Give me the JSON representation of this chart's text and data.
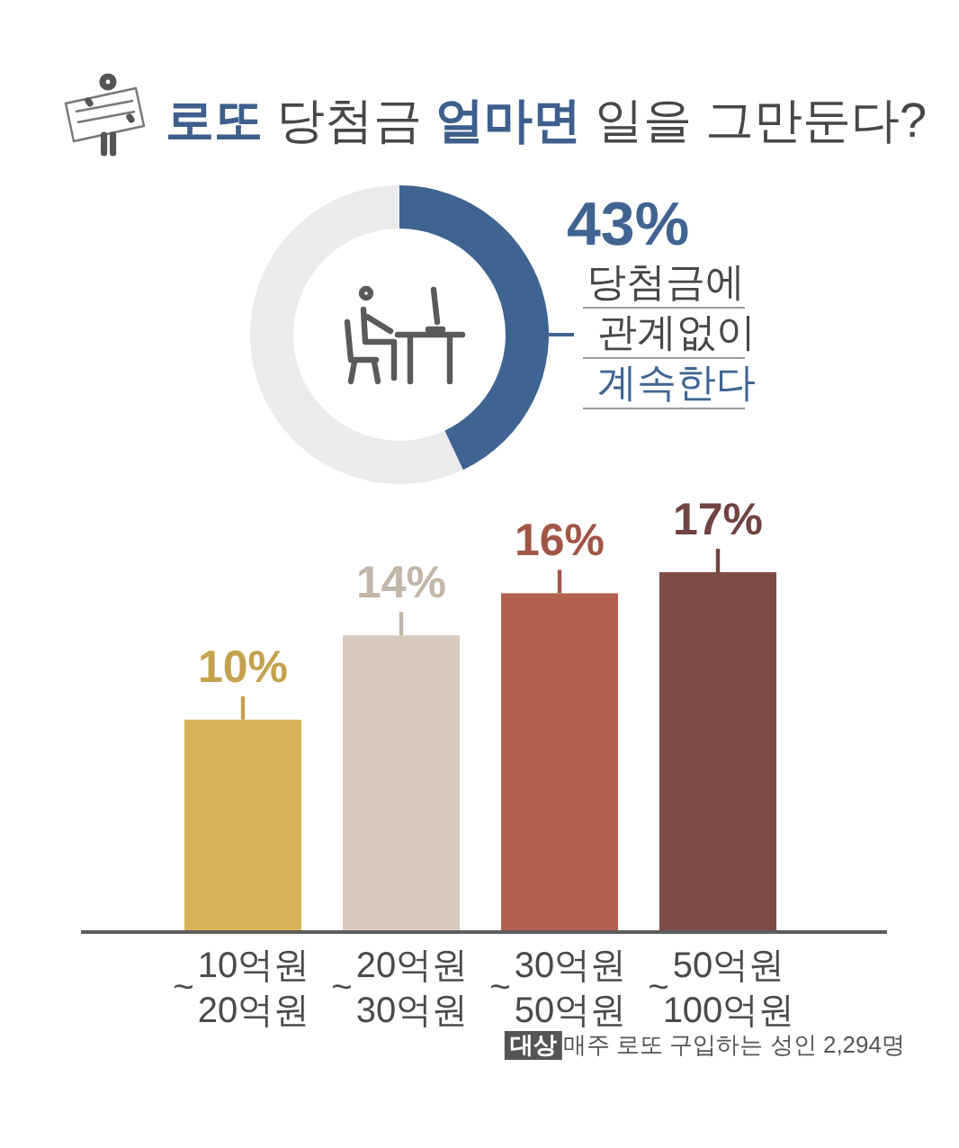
{
  "chart_data": [
    {
      "type": "donut",
      "title": "**로또** 당첨금 **얼마면** 일을 그만둔다?",
      "categories": [
        "당첨금에 관계없이 **계속한다**",
        null
      ],
      "values": [
        43,
        57
      ],
      "colors": [
        "#3f6491",
        "#ebebeb"
      ],
      "value_labels": [
        "43%",
        null
      ]
    },
    {
      "type": "bar",
      "categories": [
        "10억원~20억원",
        "20억원~30억원",
        "30억원~50억원",
        "50억원~100억원"
      ],
      "values": [
        10,
        14,
        16,
        17
      ],
      "colors": [
        "#dab356",
        "#d8cabc",
        "#b3604f",
        "#7e4a48"
      ],
      "value_labels": [
        "10%",
        "14%",
        "16%",
        "17%"
      ],
      "annotations": [
        "**대상** 매주 로또 구입하는 성인 2,294명"
      ]
    }
  ]
}
